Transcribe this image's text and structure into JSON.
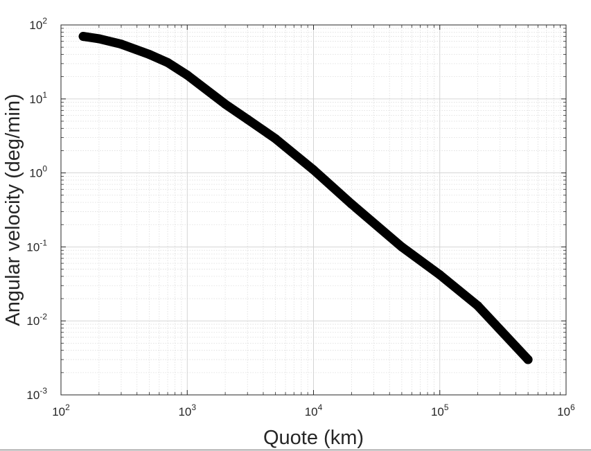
{
  "chart_data": {
    "type": "line",
    "title": "",
    "xlabel": "Quote (km)",
    "ylabel": "Angular velocity (deg/min)",
    "xscale": "log",
    "yscale": "log",
    "xlim": [
      100,
      1000000
    ],
    "ylim": [
      0.001,
      100
    ],
    "grid": true,
    "minor_grid": true,
    "legend": "none",
    "x_ticks": [
      {
        "base": "10",
        "exp": "2",
        "value": 100
      },
      {
        "base": "10",
        "exp": "3",
        "value": 1000
      },
      {
        "base": "10",
        "exp": "4",
        "value": 10000
      },
      {
        "base": "10",
        "exp": "5",
        "value": 100000
      },
      {
        "base": "10",
        "exp": "6",
        "value": 1000000
      }
    ],
    "y_ticks": [
      {
        "base": "10",
        "exp": "-3",
        "value": 0.001
      },
      {
        "base": "10",
        "exp": "-2",
        "value": 0.01
      },
      {
        "base": "10",
        "exp": "-1",
        "value": 0.1
      },
      {
        "base": "10",
        "exp": "0",
        "value": 1
      },
      {
        "base": "10",
        "exp": "1",
        "value": 10
      },
      {
        "base": "10",
        "exp": "2",
        "value": 100
      }
    ],
    "series": [
      {
        "color": "#000000",
        "x": [
          150,
          200,
          300,
          500,
          700,
          1000,
          2000,
          3000,
          5000,
          10000,
          20000,
          50000,
          100000,
          200000,
          500000
        ],
        "y": [
          70,
          65,
          55,
          40,
          31,
          21,
          8.5,
          5.3,
          2.9,
          1.1,
          0.38,
          0.1,
          0.042,
          0.016,
          0.003
        ]
      }
    ]
  }
}
